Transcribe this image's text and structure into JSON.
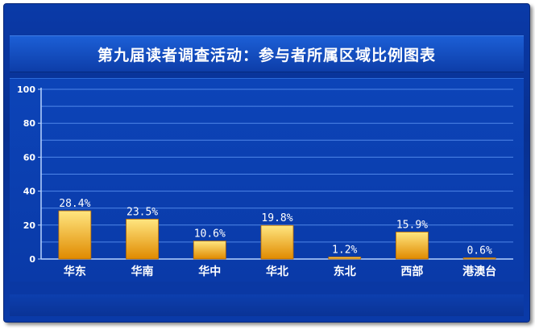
{
  "title": "第九届读者调查活动：参与者所属区域比例图表",
  "chart_data": {
    "type": "bar",
    "title": "第九届读者调查活动：参与者所属区域比例图表",
    "categories": [
      "华东",
      "华南",
      "华中",
      "华北",
      "东北",
      "西部",
      "港澳台"
    ],
    "values": [
      28.4,
      23.5,
      10.6,
      19.8,
      1.2,
      15.9,
      0.6
    ],
    "data_labels": [
      "28.4%",
      "23.5%",
      "10.6%",
      "19.8%",
      "1.2%",
      "15.9%",
      "0.6%"
    ],
    "yticks": [
      "0",
      "20",
      "40",
      "60",
      "80",
      "100"
    ],
    "ylim": [
      0,
      100
    ],
    "xlabel": "",
    "ylabel": "",
    "grid": true,
    "colors": {
      "bar_top": "#ffe680",
      "bar_bottom": "#e08a00",
      "axis": "#b8d4ff",
      "grid": "#4f86e8",
      "label": "#ffffff"
    }
  }
}
